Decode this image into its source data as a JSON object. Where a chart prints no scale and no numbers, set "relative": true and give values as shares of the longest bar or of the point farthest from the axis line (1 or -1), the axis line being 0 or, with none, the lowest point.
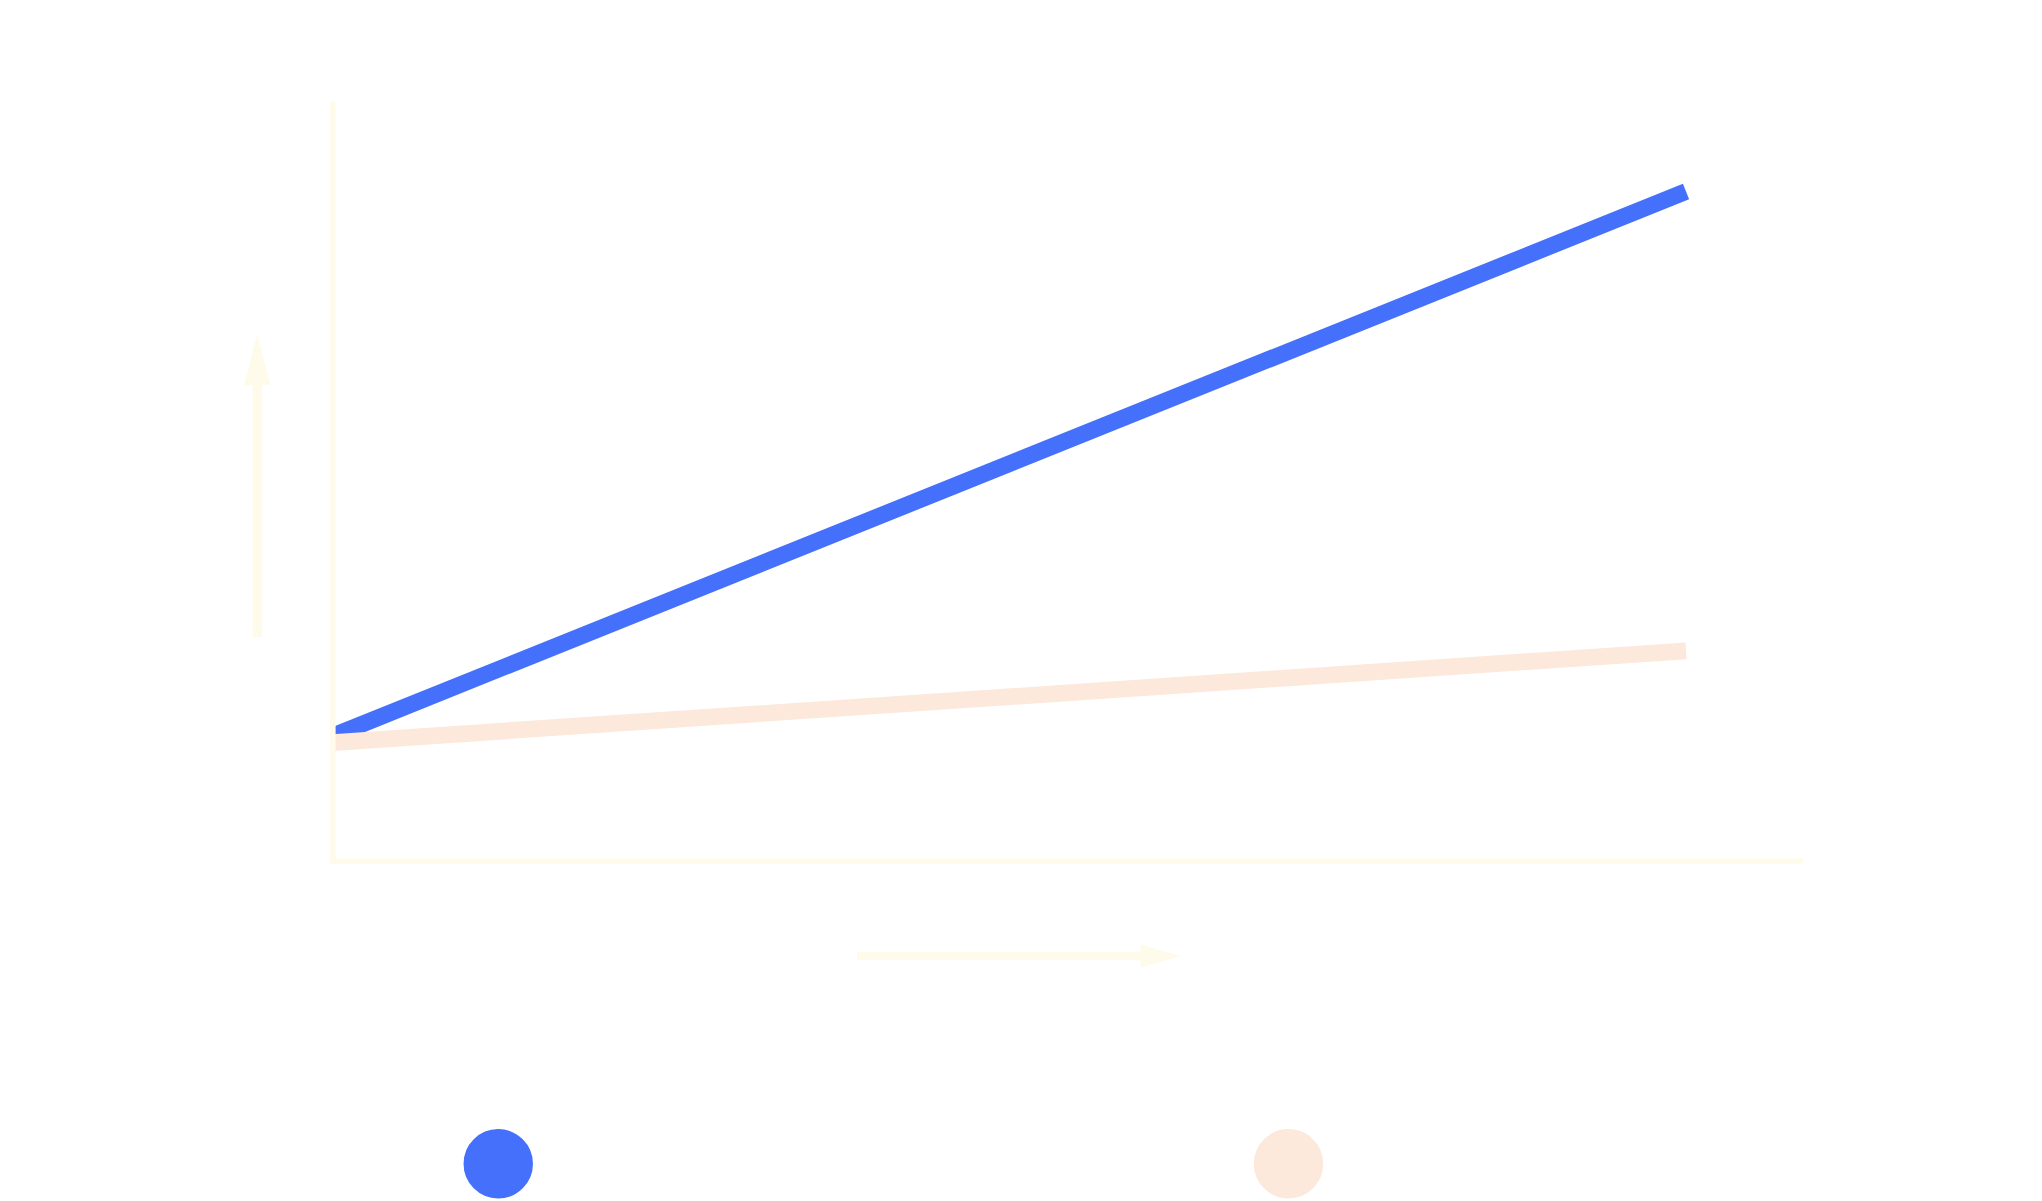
{
  "chart_data": {
    "type": "line",
    "relative": true,
    "categories": [
      null,
      null
    ],
    "series": [
      {
        "color": "#4570fb",
        "values": [
          0.187,
          1
        ]
      },
      {
        "color": "#fde8dc",
        "values": [
          0.177,
          0.314
        ]
      }
    ],
    "ref_lines": [
      {
        "axis": "y",
        "value": 0,
        "color": "#fffbeb"
      }
    ],
    "grid": false,
    "legend": false
  }
}
